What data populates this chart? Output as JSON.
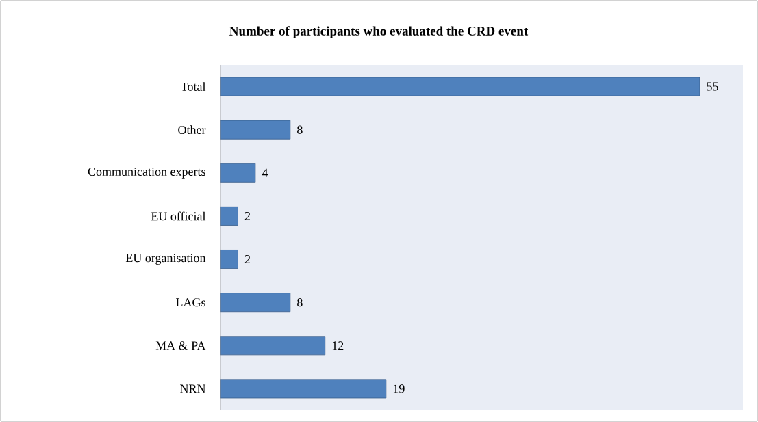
{
  "chart_data": {
    "type": "bar",
    "orientation": "horizontal",
    "title": "Number of participants who evaluated the CRD event",
    "categories": [
      "Total",
      "Other",
      "Communication experts",
      "EU official",
      "EU organisation",
      "LAGs",
      "MA & PA",
      "NRN"
    ],
    "values": [
      55,
      8,
      4,
      2,
      2,
      8,
      12,
      19
    ],
    "color": "#4f81bd",
    "data_labels": true
  }
}
